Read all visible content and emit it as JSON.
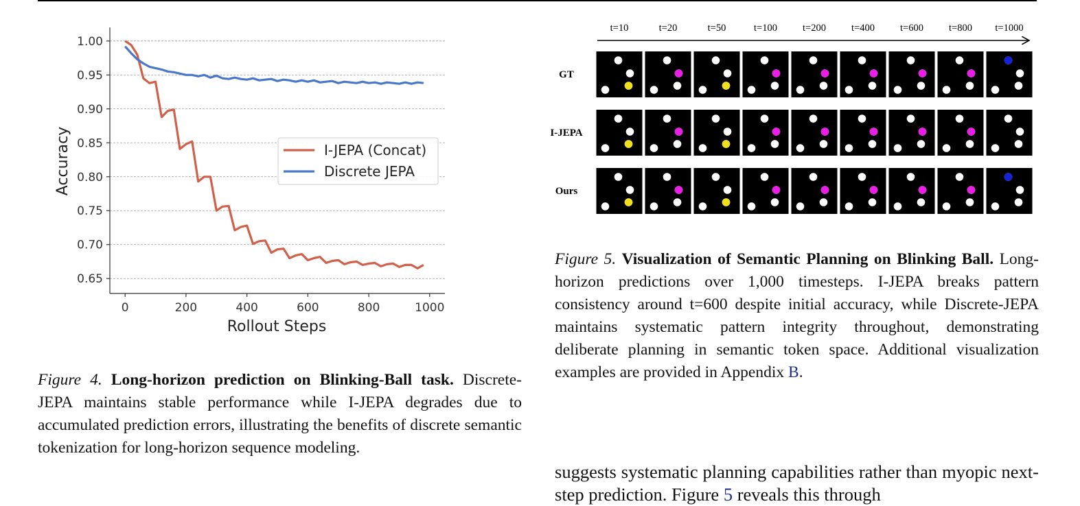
{
  "figure4": {
    "caption": {
      "label": "Figure 4.",
      "title": "Long-horizon prediction on Blinking-Ball task.",
      "text": "Discrete-JEPA maintains stable performance while I-JEPA degrades due to accumulated prediction errors, illustrating the benefits of discrete semantic tokenization for long-horizon sequence modeling."
    },
    "chart_data": {
      "type": "line",
      "xlabel": "Rollout Steps",
      "ylabel": "Accuracy",
      "xlim": [
        -50,
        1050
      ],
      "ylim": [
        0.628,
        1.02
      ],
      "xticks": [
        0,
        200,
        400,
        600,
        800,
        1000
      ],
      "yticks": [
        0.65,
        0.7,
        0.75,
        0.8,
        0.85,
        0.9,
        0.95,
        1.0
      ],
      "grid": "horizontal dashed",
      "legend_placement": "center-right",
      "series": [
        {
          "name": "I-JEPA (Concat)",
          "color": "#d1604a",
          "points": [
            [
              0,
              1.0
            ],
            [
              20,
              0.994
            ],
            [
              40,
              0.98
            ],
            [
              60,
              0.945
            ],
            [
              80,
              0.938
            ],
            [
              100,
              0.94
            ],
            [
              120,
              0.888
            ],
            [
              140,
              0.897
            ],
            [
              160,
              0.899
            ],
            [
              180,
              0.841
            ],
            [
              200,
              0.848
            ],
            [
              220,
              0.852
            ],
            [
              240,
              0.793
            ],
            [
              260,
              0.8
            ],
            [
              280,
              0.8
            ],
            [
              300,
              0.75
            ],
            [
              320,
              0.756
            ],
            [
              340,
              0.757
            ],
            [
              360,
              0.721
            ],
            [
              380,
              0.726
            ],
            [
              400,
              0.728
            ],
            [
              420,
              0.701
            ],
            [
              440,
              0.705
            ],
            [
              460,
              0.706
            ],
            [
              480,
              0.688
            ],
            [
              500,
              0.693
            ],
            [
              520,
              0.694
            ],
            [
              540,
              0.68
            ],
            [
              560,
              0.684
            ],
            [
              580,
              0.686
            ],
            [
              600,
              0.677
            ],
            [
              620,
              0.68
            ],
            [
              640,
              0.682
            ],
            [
              660,
              0.673
            ],
            [
              680,
              0.676
            ],
            [
              700,
              0.677
            ],
            [
              720,
              0.671
            ],
            [
              740,
              0.674
            ],
            [
              760,
              0.675
            ],
            [
              780,
              0.67
            ],
            [
              800,
              0.672
            ],
            [
              820,
              0.673
            ],
            [
              840,
              0.668
            ],
            [
              860,
              0.671
            ],
            [
              880,
              0.672
            ],
            [
              900,
              0.667
            ],
            [
              920,
              0.67
            ],
            [
              940,
              0.67
            ],
            [
              960,
              0.665
            ],
            [
              980,
              0.67
            ]
          ]
        },
        {
          "name": "Discrete JEPA",
          "color": "#4a78c8",
          "points": [
            [
              0,
              0.992
            ],
            [
              20,
              0.982
            ],
            [
              40,
              0.973
            ],
            [
              60,
              0.967
            ],
            [
              80,
              0.962
            ],
            [
              100,
              0.96
            ],
            [
              120,
              0.958
            ],
            [
              140,
              0.955
            ],
            [
              160,
              0.954
            ],
            [
              180,
              0.952
            ],
            [
              200,
              0.95
            ],
            [
              220,
              0.95
            ],
            [
              240,
              0.948
            ],
            [
              260,
              0.95
            ],
            [
              280,
              0.946
            ],
            [
              300,
              0.949
            ],
            [
              320,
              0.945
            ],
            [
              340,
              0.944
            ],
            [
              360,
              0.946
            ],
            [
              380,
              0.944
            ],
            [
              400,
              0.943
            ],
            [
              420,
              0.945
            ],
            [
              440,
              0.942
            ],
            [
              460,
              0.943
            ],
            [
              480,
              0.944
            ],
            [
              500,
              0.941
            ],
            [
              520,
              0.943
            ],
            [
              540,
              0.942
            ],
            [
              560,
              0.94
            ],
            [
              580,
              0.942
            ],
            [
              600,
              0.94
            ],
            [
              620,
              0.942
            ],
            [
              640,
              0.939
            ],
            [
              660,
              0.94
            ],
            [
              680,
              0.941
            ],
            [
              700,
              0.938
            ],
            [
              720,
              0.94
            ],
            [
              740,
              0.939
            ],
            [
              760,
              0.938
            ],
            [
              780,
              0.94
            ],
            [
              800,
              0.938
            ],
            [
              820,
              0.939
            ],
            [
              840,
              0.937
            ],
            [
              860,
              0.939
            ],
            [
              880,
              0.938
            ],
            [
              900,
              0.937
            ],
            [
              920,
              0.939
            ],
            [
              940,
              0.937
            ],
            [
              960,
              0.939
            ],
            [
              980,
              0.938
            ]
          ]
        }
      ]
    }
  },
  "figure5": {
    "timesteps": [
      "t=10",
      "t=20",
      "t=50",
      "t=100",
      "t=200",
      "t=400",
      "t=600",
      "t=800",
      "t=1000"
    ],
    "rows": [
      {
        "label": "GT",
        "colors": [
          "yellow",
          "magenta",
          "yellow",
          "magenta",
          "magenta",
          "magenta",
          "magenta",
          "magenta",
          "blue"
        ]
      },
      {
        "label": "I-JEPA",
        "colors": [
          "yellow",
          "magenta",
          "yellow",
          "magenta",
          "magenta",
          "magenta",
          "magenta",
          "magenta",
          "none"
        ]
      },
      {
        "label": "Ours",
        "colors": [
          "yellow",
          "magenta",
          "yellow",
          "magenta",
          "magenta",
          "magenta",
          "magenta",
          "magenta",
          "blue"
        ]
      }
    ],
    "ball_colors": {
      "yellow": "#f0e01e",
      "magenta": "#ea1ee6",
      "blue": "#1622d8",
      "white": "#ffffff"
    },
    "caption": {
      "label": "Figure 5.",
      "title": "Visualization of Semantic Planning on Blinking Ball.",
      "text": "Long-horizon predictions over 1,000 timesteps. I-JEPA breaks pattern consistency around t=600 despite initial accuracy, while Discrete-JEPA maintains systematic pattern integrity throughout, demonstrating deliberate planning in semantic token space. Additional visualization examples are provided in Appendix",
      "link": "B",
      "end": "."
    }
  },
  "body_text": {
    "before": "suggests systematic planning capabilities rather than myopic next-step prediction.  Figure",
    "link": "5",
    "after": "reveals this through"
  }
}
